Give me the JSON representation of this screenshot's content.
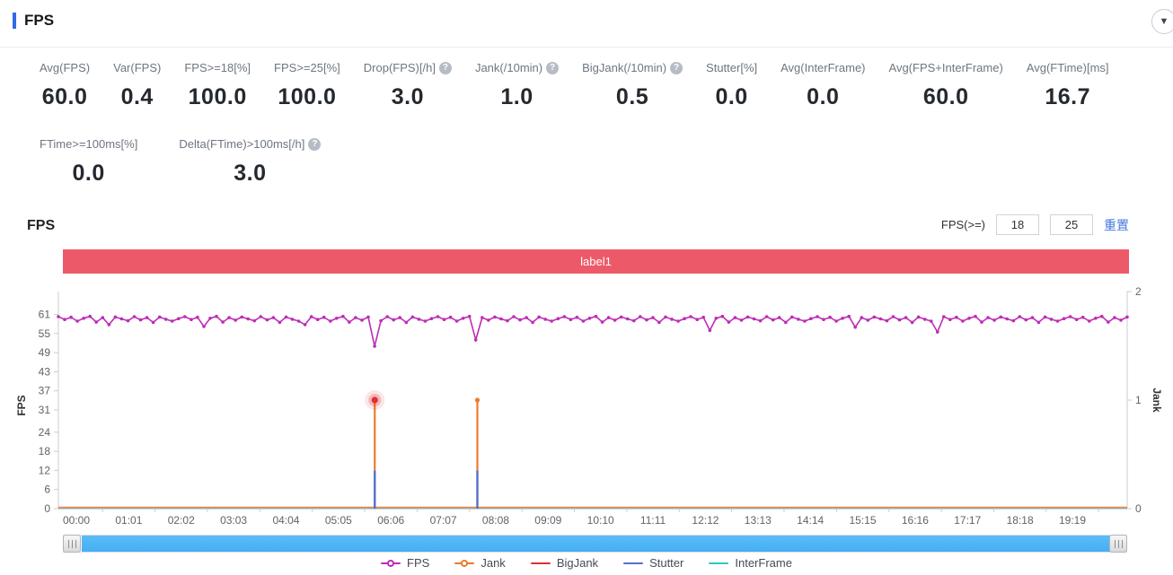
{
  "header": {
    "title": "FPS",
    "collapse_icon": "caret-down",
    "accent_color": "#2e6be6"
  },
  "metrics_row1": [
    {
      "label": "Avg(FPS)",
      "value": "60.0",
      "help": false
    },
    {
      "label": "Var(FPS)",
      "value": "0.4",
      "help": false
    },
    {
      "label": "FPS>=18[%]",
      "value": "100.0",
      "help": false
    },
    {
      "label": "FPS>=25[%]",
      "value": "100.0",
      "help": false
    },
    {
      "label": "Drop(FPS)[/h]",
      "value": "3.0",
      "help": true
    },
    {
      "label": "Jank(/10min)",
      "value": "1.0",
      "help": true
    },
    {
      "label": "BigJank(/10min)",
      "value": "0.5",
      "help": true
    },
    {
      "label": "Stutter[%]",
      "value": "0.0",
      "help": false
    },
    {
      "label": "Avg(InterFrame)",
      "value": "0.0",
      "help": false
    },
    {
      "label": "Avg(FPS+InterFrame)",
      "value": "60.0",
      "help": false
    },
    {
      "label": "Avg(FTime)[ms]",
      "value": "16.7",
      "help": false
    }
  ],
  "metrics_row2": [
    {
      "label": "FTime>=100ms[%]",
      "value": "0.0",
      "help": false
    },
    {
      "label": "Delta(FTime)>100ms[/h]",
      "value": "3.0",
      "help": true
    }
  ],
  "chart_section": {
    "title": "FPS",
    "fps_filter_label": "FPS(>=)",
    "fps_min": "18",
    "fps_max": "25",
    "reset_label": "重置",
    "banner": {
      "text": "label1",
      "color": "#ec5a6a"
    }
  },
  "chart_data": {
    "type": "line",
    "title": "label1",
    "x_axis": {
      "labels": [
        "00:00",
        "01:01",
        "02:02",
        "03:03",
        "04:04",
        "05:05",
        "06:06",
        "07:07",
        "08:08",
        "09:09",
        "10:10",
        "11:11",
        "12:12",
        "13:13",
        "14:14",
        "15:15",
        "16:16",
        "17:17",
        "18:18",
        "19:19"
      ]
    },
    "y_axis_left": {
      "label": "FPS",
      "ticks": [
        61,
        55,
        49,
        43,
        37,
        31,
        24,
        18,
        12,
        6,
        0
      ],
      "max": 68.2
    },
    "y_axis_right": {
      "label": "Jank",
      "ticks": [
        2,
        1,
        0
      ],
      "max": 2
    },
    "grid": false,
    "legend_position": "bottom",
    "series": [
      {
        "name": "FPS",
        "color": "#bd2db4",
        "style": "line-dot",
        "baseline": 60,
        "point_count": 170,
        "noise_pattern": [
          0.3,
          -0.6,
          0.1,
          -1.1,
          -0.2,
          0.4,
          -1.4,
          0,
          -0.8,
          0.2,
          -0.4,
          -1.0,
          0.3,
          -0.7,
          0,
          -1.5,
          0.2,
          -0.5,
          -1.1,
          -0.3
        ],
        "dips": [
          {
            "frac": 0.05,
            "fps": 57.8
          },
          {
            "frac": 0.139,
            "fps": 57.2
          },
          {
            "frac": 0.229,
            "fps": 57.8
          },
          {
            "frac": 0.296,
            "fps": 51.0
          },
          {
            "frac": 0.392,
            "fps": 53.0
          },
          {
            "frac": 0.609,
            "fps": 56.0
          },
          {
            "frac": 0.744,
            "fps": 57.0
          },
          {
            "frac": 0.823,
            "fps": 55.5
          }
        ]
      },
      {
        "name": "Jank",
        "color": "#ee7a2d",
        "style": "baseline-spikes",
        "baseline": 0,
        "spikes": [
          {
            "frac": 0.296,
            "jank": 1
          },
          {
            "frac": 0.392,
            "jank": 1
          }
        ]
      },
      {
        "name": "BigJank",
        "color": "#e03030",
        "style": "event-marker",
        "baseline": 0,
        "events": [
          {
            "frac": 0.296,
            "jank": 1
          }
        ]
      },
      {
        "name": "Stutter",
        "color": "#5470c6",
        "style": "spike-base",
        "baseline": 0,
        "spikes": [
          {
            "frac": 0.296,
            "fps_top": 12
          },
          {
            "frac": 0.392,
            "fps_top": 12
          }
        ]
      },
      {
        "name": "InterFrame",
        "color": "#32c5c8",
        "style": "flat",
        "baseline": 0
      }
    ],
    "legend": [
      {
        "label": "FPS",
        "color": "#bd2db4",
        "marker": "line-circle"
      },
      {
        "label": "Jank",
        "color": "#ee7a2d",
        "marker": "line-circle"
      },
      {
        "label": "BigJank",
        "color": "#e03030",
        "marker": "line"
      },
      {
        "label": "Stutter",
        "color": "#5470c6",
        "marker": "line"
      },
      {
        "label": "InterFrame",
        "color": "#32c5c8",
        "marker": "line"
      }
    ]
  },
  "datazoom": {
    "fill_color": "#45aef3",
    "range_start_frac": 0.0,
    "range_end_frac": 0.98
  }
}
